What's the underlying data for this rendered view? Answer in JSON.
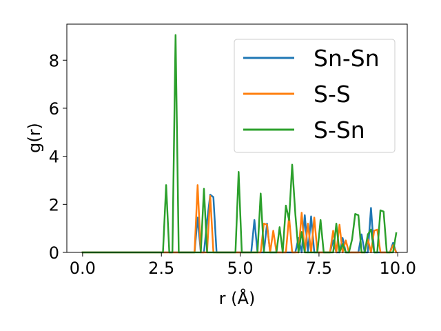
{
  "chart_data": {
    "type": "line",
    "xlabel": "r (Å)",
    "ylabel": "g(r)",
    "xlim": [
      -0.5,
      10.3
    ],
    "ylim": [
      0,
      9.5
    ],
    "xticks": [
      0.0,
      2.5,
      5.0,
      7.5,
      10.0
    ],
    "xtick_labels": [
      "0.0",
      "2.5",
      "5.0",
      "7.5",
      "10.0"
    ],
    "yticks": [
      0,
      2,
      4,
      6,
      8
    ],
    "ytick_labels": [
      "0",
      "2",
      "4",
      "6",
      "8"
    ],
    "grid": false,
    "legend_position": "upper-right",
    "series": [
      {
        "name": "Sn-Sn",
        "color": "#1f77b4",
        "points": [
          [
            0.0,
            0
          ],
          [
            3.45,
            0
          ],
          [
            3.55,
            0
          ],
          [
            3.65,
            1.45
          ],
          [
            3.75,
            0
          ],
          [
            3.85,
            0
          ],
          [
            3.95,
            1.3
          ],
          [
            4.05,
            2.4
          ],
          [
            4.15,
            2.3
          ],
          [
            4.25,
            0
          ],
          [
            4.35,
            0
          ],
          [
            5.35,
            0
          ],
          [
            5.45,
            1.35
          ],
          [
            5.55,
            0
          ],
          [
            5.65,
            0
          ],
          [
            5.75,
            0
          ],
          [
            5.85,
            1.2
          ],
          [
            5.95,
            0
          ],
          [
            6.05,
            0
          ],
          [
            6.15,
            0
          ],
          [
            6.25,
            0
          ],
          [
            6.75,
            0
          ],
          [
            6.85,
            0.6
          ],
          [
            6.95,
            0
          ],
          [
            7.05,
            1.55
          ],
          [
            7.15,
            0
          ],
          [
            7.25,
            1.5
          ],
          [
            7.35,
            0
          ],
          [
            7.85,
            0
          ],
          [
            7.95,
            0.5
          ],
          [
            8.05,
            0
          ],
          [
            8.15,
            0
          ],
          [
            8.25,
            0.6
          ],
          [
            8.35,
            0
          ],
          [
            8.75,
            0
          ],
          [
            8.85,
            0.75
          ],
          [
            8.95,
            0
          ],
          [
            9.05,
            0
          ],
          [
            9.15,
            1.85
          ],
          [
            9.25,
            0
          ],
          [
            9.35,
            0
          ],
          [
            9.75,
            0
          ],
          [
            9.85,
            0.4
          ],
          [
            9.95,
            0
          ]
        ]
      },
      {
        "name": "S-S",
        "color": "#ff7f0e",
        "points": [
          [
            0.0,
            0
          ],
          [
            3.55,
            0
          ],
          [
            3.65,
            2.8
          ],
          [
            3.75,
            0
          ],
          [
            3.85,
            0
          ],
          [
            3.95,
            0
          ],
          [
            4.05,
            2.35
          ],
          [
            4.15,
            0
          ],
          [
            4.25,
            0
          ],
          [
            5.55,
            0
          ],
          [
            5.65,
            0
          ],
          [
            5.75,
            1.2
          ],
          [
            5.85,
            1.15
          ],
          [
            5.95,
            0
          ],
          [
            6.05,
            0.9
          ],
          [
            6.15,
            0
          ],
          [
            6.45,
            0
          ],
          [
            6.55,
            1.5
          ],
          [
            6.65,
            0
          ],
          [
            6.75,
            0
          ],
          [
            6.85,
            0
          ],
          [
            6.95,
            1.65
          ],
          [
            7.05,
            0
          ],
          [
            7.15,
            1.2
          ],
          [
            7.25,
            0
          ],
          [
            7.35,
            1.45
          ],
          [
            7.45,
            0
          ],
          [
            7.55,
            0
          ],
          [
            7.65,
            0
          ],
          [
            7.75,
            0
          ],
          [
            7.85,
            0
          ],
          [
            7.95,
            0.9
          ],
          [
            8.05,
            0
          ],
          [
            8.15,
            1.15
          ],
          [
            8.25,
            0
          ],
          [
            8.35,
            0.5
          ],
          [
            8.45,
            0
          ],
          [
            8.95,
            0
          ],
          [
            9.05,
            0.55
          ],
          [
            9.15,
            0
          ],
          [
            9.25,
            0.9
          ],
          [
            9.35,
            0.95
          ],
          [
            9.45,
            0
          ],
          [
            9.75,
            0
          ],
          [
            9.85,
            0.3
          ],
          [
            9.95,
            0
          ]
        ]
      },
      {
        "name": "S-Sn",
        "color": "#2ca02c",
        "points": [
          [
            0.0,
            0
          ],
          [
            2.55,
            0
          ],
          [
            2.65,
            2.8
          ],
          [
            2.75,
            0
          ],
          [
            2.85,
            0
          ],
          [
            2.95,
            9.05
          ],
          [
            3.05,
            0
          ],
          [
            3.65,
            0
          ],
          [
            3.75,
            0
          ],
          [
            3.85,
            2.65
          ],
          [
            3.95,
            0
          ],
          [
            4.05,
            0
          ],
          [
            4.85,
            0
          ],
          [
            4.95,
            3.35
          ],
          [
            5.05,
            0
          ],
          [
            5.55,
            0
          ],
          [
            5.65,
            2.45
          ],
          [
            5.75,
            0
          ],
          [
            5.85,
            0
          ],
          [
            5.95,
            0
          ],
          [
            6.05,
            0
          ],
          [
            6.15,
            0
          ],
          [
            6.25,
            1.05
          ],
          [
            6.35,
            0
          ],
          [
            6.45,
            1.95
          ],
          [
            6.55,
            1.35
          ],
          [
            6.65,
            3.65
          ],
          [
            6.75,
            1.6
          ],
          [
            6.85,
            0
          ],
          [
            6.95,
            0.85
          ],
          [
            7.05,
            0
          ],
          [
            7.15,
            0
          ],
          [
            7.25,
            0
          ],
          [
            7.35,
            0
          ],
          [
            7.45,
            0
          ],
          [
            7.55,
            1.35
          ],
          [
            7.65,
            0
          ],
          [
            7.75,
            0
          ],
          [
            7.85,
            0
          ],
          [
            7.95,
            0
          ],
          [
            8.05,
            1.2
          ],
          [
            8.15,
            0
          ],
          [
            8.25,
            0.35
          ],
          [
            8.35,
            0
          ],
          [
            8.45,
            0
          ],
          [
            8.55,
            0.55
          ],
          [
            8.65,
            1.6
          ],
          [
            8.75,
            1.55
          ],
          [
            8.85,
            0
          ],
          [
            8.95,
            0
          ],
          [
            9.05,
            0.75
          ],
          [
            9.15,
            0.95
          ],
          [
            9.25,
            0
          ],
          [
            9.35,
            0
          ],
          [
            9.45,
            1.75
          ],
          [
            9.55,
            1.7
          ],
          [
            9.65,
            0
          ],
          [
            9.75,
            0
          ],
          [
            9.85,
            0
          ],
          [
            9.95,
            0.8
          ]
        ]
      }
    ]
  }
}
